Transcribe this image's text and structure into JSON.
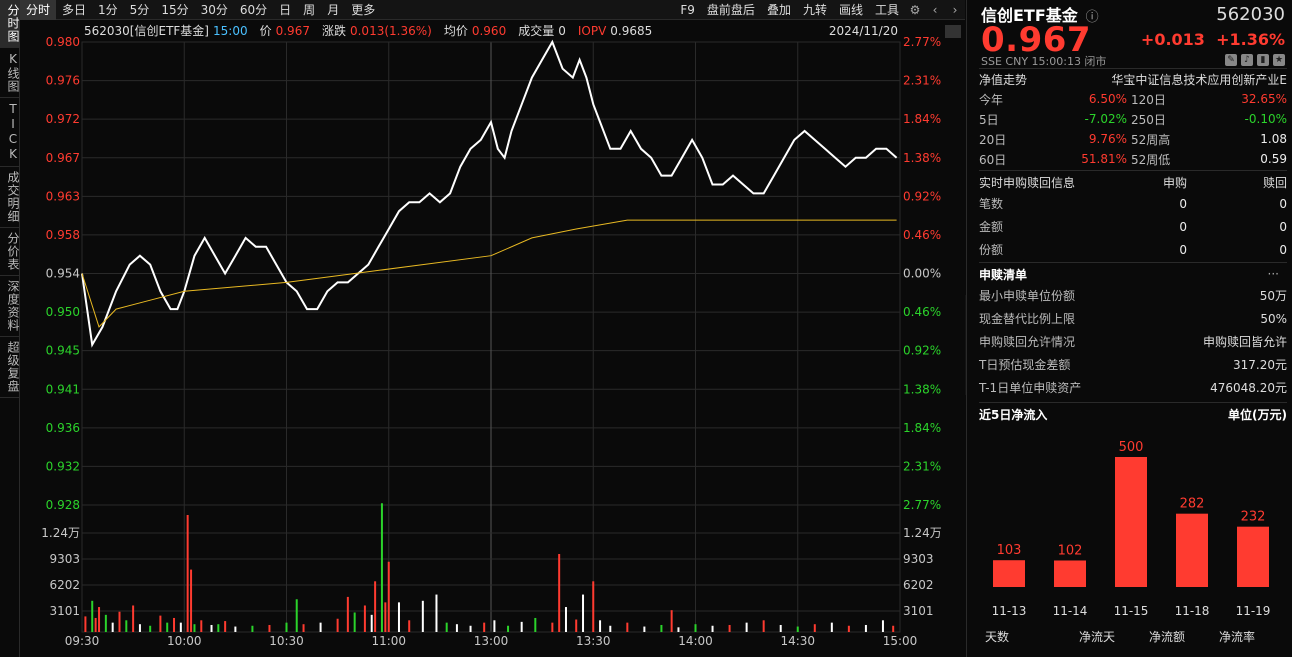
{
  "left_tabs": [
    {
      "label": "分时图"
    },
    {
      "label": "K线图"
    },
    {
      "label": "TICK"
    },
    {
      "label": "成交明细"
    },
    {
      "label": "分价表"
    },
    {
      "label": "深度资料"
    },
    {
      "label": "超级复盘"
    }
  ],
  "toolbar": {
    "periods": [
      "分时",
      "多日",
      "1分",
      "5分",
      "15分",
      "30分",
      "60分",
      "日",
      "周",
      "月",
      "更多"
    ],
    "right": [
      "F9",
      "盘前盘后",
      "叠加",
      "九转",
      "画线",
      "工具"
    ],
    "active_period": "分时"
  },
  "info_bar": {
    "name": "562030[信创ETF基金]",
    "time": "15:00",
    "price_label": "价",
    "price": "0.967",
    "change_label": "涨跌",
    "change": "0.013(1.36%)",
    "avg_label": "均价",
    "avg": "0.960",
    "vol_label": "成交量",
    "vol": "0",
    "iopv_label": "IOPV",
    "iopv": "0.9685",
    "date": "2024/11/20"
  },
  "colors": {
    "up": "#ff3b30",
    "down": "#2bd32b",
    "price_line": "#ffffff",
    "avg_line": "#e8b923",
    "bg": "#0a0a0a",
    "grid": "#2a2a2a"
  },
  "chart_data": {
    "type": "line",
    "title": "",
    "y_price_ticks": [
      "0.980",
      "0.976",
      "0.972",
      "0.967",
      "0.963",
      "0.958",
      "0.954",
      "0.950",
      "0.945",
      "0.941",
      "0.936",
      "0.932",
      "0.928"
    ],
    "y_pct_ticks": [
      "2.77%",
      "2.31%",
      "1.84%",
      "1.38%",
      "0.92%",
      "0.46%",
      "0.00%",
      "0.46%",
      "0.92%",
      "1.38%",
      "1.84%",
      "2.31%",
      "2.77%"
    ],
    "ylim": [
      0.928,
      0.98
    ],
    "prev_close": 0.954,
    "x_ticks": [
      "09:30",
      "10:00",
      "10:30",
      "11:00",
      "13:00",
      "13:30",
      "14:00",
      "14:30",
      "15:00"
    ],
    "series": [
      {
        "name": "价",
        "color": "#ffffff",
        "points": [
          [
            0,
            0.954
          ],
          [
            3,
            0.946
          ],
          [
            6,
            0.948
          ],
          [
            10,
            0.952
          ],
          [
            14,
            0.955
          ],
          [
            17,
            0.956
          ],
          [
            20,
            0.955
          ],
          [
            23,
            0.952
          ],
          [
            26,
            0.95
          ],
          [
            28,
            0.95
          ],
          [
            30,
            0.952
          ],
          [
            33,
            0.956
          ],
          [
            36,
            0.958
          ],
          [
            39,
            0.956
          ],
          [
            42,
            0.954
          ],
          [
            45,
            0.956
          ],
          [
            48,
            0.958
          ],
          [
            51,
            0.957
          ],
          [
            54,
            0.957
          ],
          [
            57,
            0.955
          ],
          [
            60,
            0.953
          ],
          [
            63,
            0.952
          ],
          [
            66,
            0.95
          ],
          [
            69,
            0.95
          ],
          [
            72,
            0.952
          ],
          [
            75,
            0.953
          ],
          [
            78,
            0.953
          ],
          [
            81,
            0.954
          ],
          [
            84,
            0.955
          ],
          [
            87,
            0.957
          ],
          [
            90,
            0.959
          ],
          [
            93,
            0.961
          ],
          [
            96,
            0.962
          ],
          [
            99,
            0.962
          ],
          [
            102,
            0.963
          ],
          [
            105,
            0.962
          ],
          [
            108,
            0.963
          ],
          [
            111,
            0.966
          ],
          [
            114,
            0.968
          ],
          [
            117,
            0.969
          ],
          [
            120,
            0.971
          ],
          [
            122,
            0.968
          ],
          [
            124,
            0.967
          ],
          [
            126,
            0.97
          ],
          [
            129,
            0.973
          ],
          [
            132,
            0.976
          ],
          [
            135,
            0.978
          ],
          [
            138,
            0.98
          ],
          [
            141,
            0.977
          ],
          [
            144,
            0.976
          ],
          [
            146,
            0.978
          ],
          [
            148,
            0.976
          ],
          [
            150,
            0.973
          ],
          [
            152,
            0.971
          ],
          [
            155,
            0.968
          ],
          [
            158,
            0.968
          ],
          [
            161,
            0.97
          ],
          [
            164,
            0.968
          ],
          [
            167,
            0.967
          ],
          [
            170,
            0.965
          ],
          [
            173,
            0.965
          ],
          [
            176,
            0.967
          ],
          [
            179,
            0.969
          ],
          [
            182,
            0.967
          ],
          [
            185,
            0.964
          ],
          [
            188,
            0.964
          ],
          [
            191,
            0.965
          ],
          [
            194,
            0.964
          ],
          [
            197,
            0.963
          ],
          [
            200,
            0.963
          ],
          [
            203,
            0.965
          ],
          [
            206,
            0.967
          ],
          [
            209,
            0.969
          ],
          [
            212,
            0.97
          ],
          [
            215,
            0.969
          ],
          [
            218,
            0.968
          ],
          [
            221,
            0.967
          ],
          [
            224,
            0.966
          ],
          [
            227,
            0.967
          ],
          [
            230,
            0.967
          ],
          [
            233,
            0.968
          ],
          [
            236,
            0.968
          ],
          [
            239,
            0.967
          ]
        ]
      },
      {
        "name": "均价",
        "color": "#e8b923",
        "points": [
          [
            0,
            0.954
          ],
          [
            5,
            0.948
          ],
          [
            10,
            0.95
          ],
          [
            20,
            0.951
          ],
          [
            30,
            0.952
          ],
          [
            60,
            0.953
          ],
          [
            80,
            0.954
          ],
          [
            100,
            0.955
          ],
          [
            120,
            0.956
          ],
          [
            132,
            0.958
          ],
          [
            145,
            0.959
          ],
          [
            160,
            0.96
          ],
          [
            180,
            0.96
          ],
          [
            200,
            0.96
          ],
          [
            239,
            0.96
          ]
        ]
      }
    ],
    "volume": {
      "y_ticks": [
        "1.24万",
        "9303",
        "6202",
        "3101"
      ],
      "ylim": [
        0,
        15000
      ],
      "bars": [
        [
          1,
          2000,
          "r"
        ],
        [
          3,
          4000,
          "g"
        ],
        [
          4,
          1800,
          "r"
        ],
        [
          5,
          3200,
          "r"
        ],
        [
          7,
          2200,
          "g"
        ],
        [
          9,
          1200,
          "w"
        ],
        [
          11,
          2600,
          "r"
        ],
        [
          13,
          1500,
          "g"
        ],
        [
          15,
          3400,
          "r"
        ],
        [
          17,
          1000,
          "w"
        ],
        [
          20,
          800,
          "g"
        ],
        [
          23,
          2100,
          "r"
        ],
        [
          25,
          1200,
          "g"
        ],
        [
          27,
          1800,
          "r"
        ],
        [
          29,
          1200,
          "w"
        ],
        [
          31,
          15000,
          "r"
        ],
        [
          32,
          8000,
          "r"
        ],
        [
          33,
          1000,
          "g"
        ],
        [
          35,
          1500,
          "r"
        ],
        [
          38,
          900,
          "w"
        ],
        [
          40,
          1000,
          "g"
        ],
        [
          42,
          1400,
          "r"
        ],
        [
          45,
          700,
          "w"
        ],
        [
          50,
          800,
          "g"
        ],
        [
          55,
          900,
          "r"
        ],
        [
          60,
          1200,
          "g"
        ],
        [
          63,
          4200,
          "g"
        ],
        [
          65,
          1000,
          "r"
        ],
        [
          70,
          1200,
          "w"
        ],
        [
          75,
          1700,
          "r"
        ],
        [
          78,
          4500,
          "r"
        ],
        [
          80,
          2500,
          "g"
        ],
        [
          83,
          3400,
          "r"
        ],
        [
          85,
          2200,
          "w"
        ],
        [
          86,
          6500,
          "r"
        ],
        [
          88,
          16500,
          "g"
        ],
        [
          89,
          3800,
          "r"
        ],
        [
          90,
          9000,
          "r"
        ],
        [
          93,
          3800,
          "w"
        ],
        [
          96,
          1500,
          "r"
        ],
        [
          100,
          4000,
          "w"
        ],
        [
          104,
          4800,
          "w"
        ],
        [
          107,
          1200,
          "g"
        ],
        [
          110,
          1000,
          "w"
        ],
        [
          114,
          800,
          "w"
        ],
        [
          118,
          1200,
          "r"
        ],
        [
          121,
          1500,
          "w"
        ],
        [
          125,
          800,
          "g"
        ],
        [
          129,
          1300,
          "w"
        ],
        [
          133,
          1800,
          "g"
        ],
        [
          138,
          1200,
          "r"
        ],
        [
          140,
          10000,
          "r"
        ],
        [
          142,
          3200,
          "w"
        ],
        [
          145,
          1600,
          "r"
        ],
        [
          147,
          4800,
          "w"
        ],
        [
          150,
          6500,
          "r"
        ],
        [
          152,
          1500,
          "w"
        ],
        [
          155,
          800,
          "w"
        ],
        [
          160,
          1200,
          "r"
        ],
        [
          165,
          700,
          "w"
        ],
        [
          170,
          900,
          "g"
        ],
        [
          173,
          2800,
          "r"
        ],
        [
          175,
          600,
          "w"
        ],
        [
          180,
          1000,
          "g"
        ],
        [
          185,
          800,
          "w"
        ],
        [
          190,
          900,
          "r"
        ],
        [
          195,
          1200,
          "w"
        ],
        [
          200,
          1500,
          "r"
        ],
        [
          205,
          900,
          "w"
        ],
        [
          210,
          700,
          "g"
        ],
        [
          215,
          1000,
          "r"
        ],
        [
          220,
          1200,
          "w"
        ],
        [
          225,
          800,
          "r"
        ],
        [
          230,
          900,
          "w"
        ],
        [
          235,
          1500,
          "w"
        ],
        [
          238,
          800,
          "r"
        ]
      ]
    }
  },
  "panel": {
    "name": "信创ETF基金",
    "code": "562030",
    "price": "0.967",
    "change": "+0.013",
    "pct": "+1.36%",
    "sub": "SSE CNY 15:00:13 闭市",
    "nav_label": "净值走势",
    "index_name": "华宝中证信息技术应用创新产业E",
    "perf": [
      {
        "a": "今年",
        "av": "6.50%",
        "ac": "red",
        "b": "120日",
        "bv": "32.65%",
        "bc": "red"
      },
      {
        "a": "5日",
        "av": "-7.02%",
        "ac": "green",
        "b": "250日",
        "bv": "-0.10%",
        "bc": "green"
      },
      {
        "a": "20日",
        "av": "9.76%",
        "ac": "red",
        "b": "52周高",
        "bv": "1.08",
        "bc": "white"
      },
      {
        "a": "60日",
        "av": "51.81%",
        "ac": "red",
        "b": "52周低",
        "bv": "0.59",
        "bc": "white"
      }
    ],
    "realtime": {
      "title": "实时申购赎回信息",
      "c1": "申购",
      "c2": "赎回",
      "rows": [
        [
          "笔数",
          "0",
          "0"
        ],
        [
          "金额",
          "0",
          "0"
        ],
        [
          "份额",
          "0",
          "0"
        ]
      ]
    },
    "list": {
      "title": "申赎清单",
      "more": "···",
      "rows": [
        [
          "最小申赎单位份额",
          "50万"
        ],
        [
          "现金替代比例上限",
          "50%"
        ],
        [
          "申购赎回允许情况",
          "申购赎回皆允许"
        ],
        [
          "T日预估现金差额",
          "317.20元"
        ],
        [
          "T-1日单位申赎资产",
          "476048.20元"
        ]
      ]
    },
    "flow": {
      "title": "近5日净流入",
      "unit": "单位(万元)",
      "dates": [
        "11-13",
        "11-14",
        "11-15",
        "11-18",
        "11-19"
      ],
      "values": [
        103,
        102,
        500,
        282,
        232
      ],
      "tabs": [
        "天数",
        "净流天",
        "净流额",
        "净流率"
      ]
    }
  }
}
